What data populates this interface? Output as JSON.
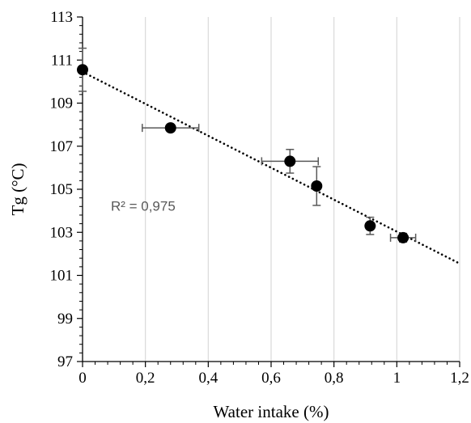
{
  "chart_data": {
    "type": "scatter",
    "xlabel": "Water intake (%)",
    "ylabel": "Tg (°C)",
    "xlim": [
      0,
      1.2
    ],
    "ylim": [
      97,
      113
    ],
    "x_ticks": [
      0,
      0.2,
      0.4,
      0.6,
      0.8,
      1.0,
      1.2
    ],
    "x_tick_labels": [
      "0",
      "0,2",
      "0,4",
      "0,6",
      "0,8",
      "1",
      "1,2"
    ],
    "y_ticks": [
      97,
      99,
      101,
      103,
      105,
      107,
      109,
      111,
      113
    ],
    "y_tick_labels": [
      "97",
      "99",
      "101",
      "103",
      "105",
      "107",
      "109",
      "111",
      "113"
    ],
    "grid": {
      "vertical": true,
      "horizontal": false
    },
    "points": [
      {
        "x": 0.0,
        "y": 110.55,
        "xerr": 0.0,
        "yerr": 1.0
      },
      {
        "x": 0.28,
        "y": 107.85,
        "xerr": 0.09,
        "yerr": 0.0
      },
      {
        "x": 0.66,
        "y": 106.3,
        "xerr": 0.09,
        "yerr": 0.55
      },
      {
        "x": 0.745,
        "y": 105.15,
        "xerr": 0.0,
        "yerr": 0.9
      },
      {
        "x": 0.915,
        "y": 103.3,
        "xerr": 0.0,
        "yerr": 0.4
      },
      {
        "x": 1.02,
        "y": 102.75,
        "xerr": 0.04,
        "yerr": 0.2
      }
    ],
    "trendline": {
      "style": "dotted",
      "x": [
        0,
        1.2
      ],
      "y": [
        110.45,
        101.55
      ]
    },
    "annotation": "R² = 0,975",
    "annotation_position": {
      "x": 0.09,
      "y": 104.0
    },
    "colors": {
      "marker": "#000000",
      "errorbar": "#595959",
      "grid": "#d9d9d9",
      "trendline": "#000000",
      "annotation": "#595959"
    }
  }
}
